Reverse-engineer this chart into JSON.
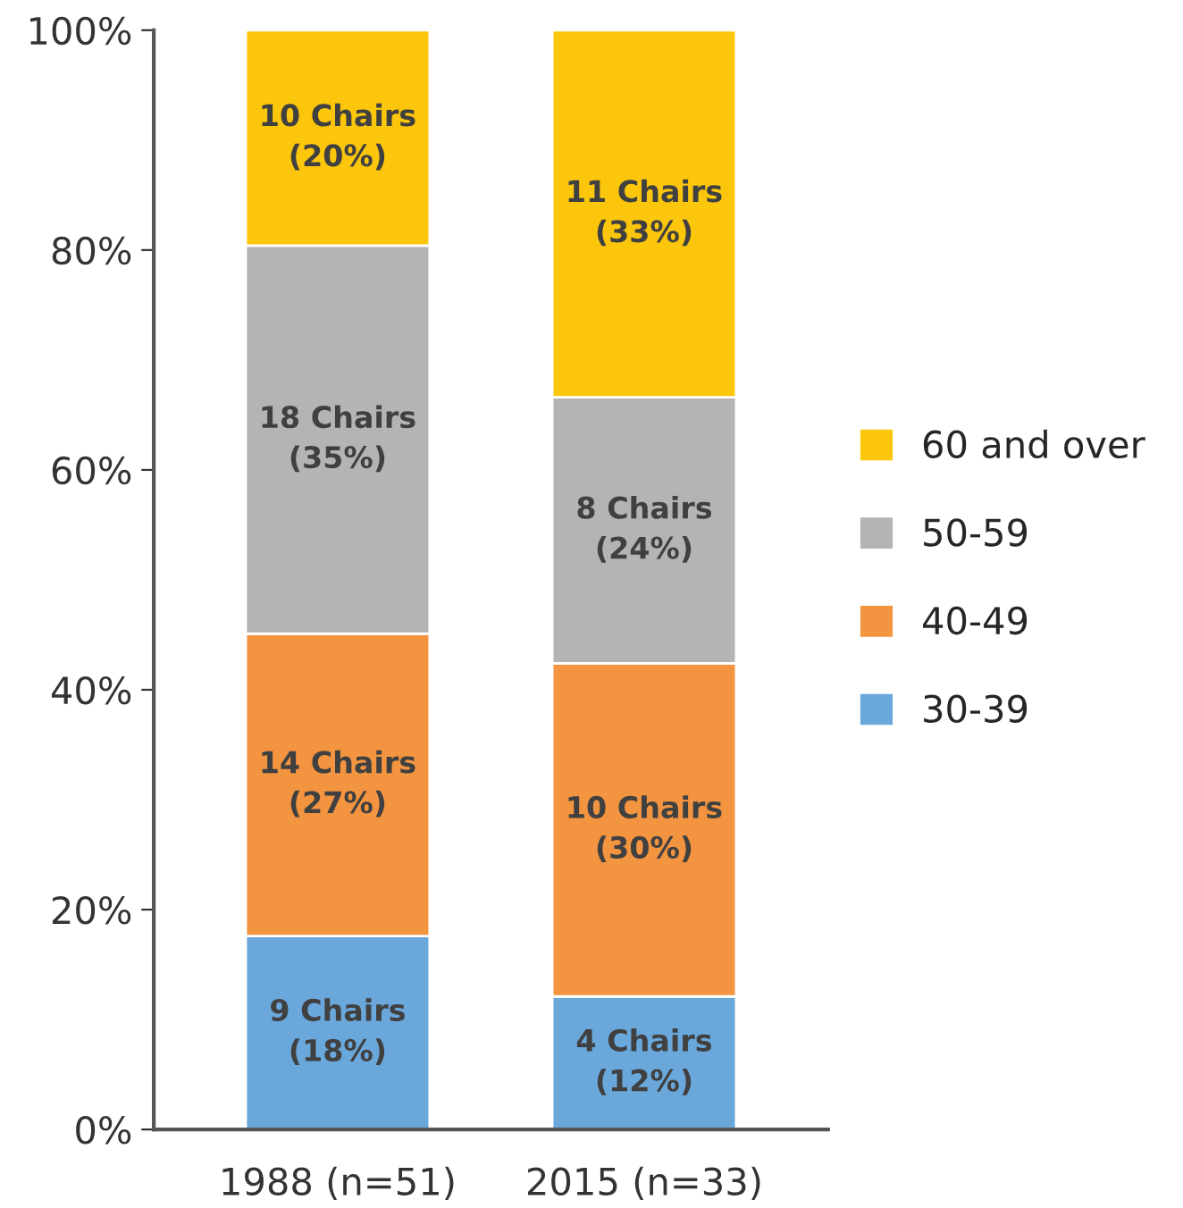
{
  "chart_data": {
    "type": "bar",
    "stacked": true,
    "categories": [
      "1988 (n=51)",
      "2015 (n=33)"
    ],
    "series": [
      {
        "name": "30-39",
        "color": "#6aa8dc",
        "values": [
          17.6,
          12.1
        ],
        "value_labels": [
          "9 Chairs\n(18%)",
          "4 Chairs\n(12%)"
        ]
      },
      {
        "name": "40-49",
        "color": "#f39440",
        "values": [
          27.5,
          30.3
        ],
        "value_labels": [
          "14 Chairs\n(27%)",
          "10 Chairs\n(30%)"
        ]
      },
      {
        "name": "50-59",
        "color": "#b4b4b4",
        "values": [
          35.3,
          24.2
        ],
        "value_labels": [
          "18 Chairs\n(35%)",
          "8 Chairs\n(24%)"
        ]
      },
      {
        "name": "60 and over",
        "color": "#fcc60d",
        "values": [
          19.6,
          33.4
        ],
        "value_labels": [
          "10 Chairs\n(20%)",
          "11 Chairs\n(33%)"
        ]
      }
    ],
    "ylim": [
      0,
      100
    ],
    "yticks": [
      {
        "value": 0,
        "label": "0%"
      },
      {
        "value": 20,
        "label": "20%"
      },
      {
        "value": 40,
        "label": "40%"
      },
      {
        "value": 60,
        "label": "60%"
      },
      {
        "value": 80,
        "label": "80%"
      },
      {
        "value": 100,
        "label": "100%"
      }
    ],
    "grid": false,
    "legend": "right"
  }
}
